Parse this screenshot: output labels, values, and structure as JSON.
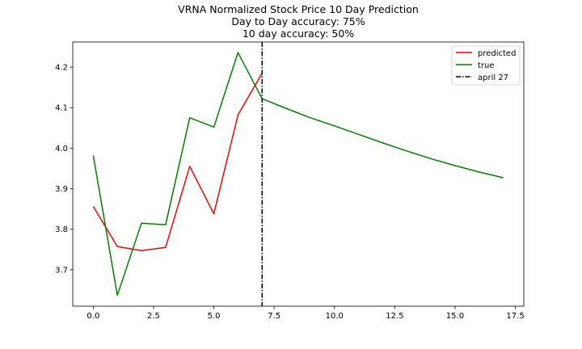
{
  "chart_data": {
    "type": "line",
    "title_lines": [
      "VRNA Normalized Stock Price 10 Day Prediction",
      "Day to Day accuracy: 75%",
      "10 day accuracy: 50%"
    ],
    "xlabel": "",
    "ylabel": "",
    "xlim": [
      -0.85,
      17.85
    ],
    "ylim": [
      3.61,
      4.262
    ],
    "xticks": [
      0.0,
      2.5,
      5.0,
      7.5,
      10.0,
      12.5,
      15.0,
      17.5
    ],
    "xtick_labels": [
      "0.0",
      "2.5",
      "5.0",
      "7.5",
      "10.0",
      "12.5",
      "15.0",
      "17.5"
    ],
    "yticks": [
      3.7,
      3.8,
      3.9,
      4.0,
      4.1,
      4.2
    ],
    "ytick_labels": [
      "3.7",
      "3.8",
      "3.9",
      "4.0",
      "4.1",
      "4.2"
    ],
    "grid": false,
    "legend_position": "top-right",
    "series": [
      {
        "name": "predicted",
        "color": "#ff0000",
        "x": [
          0,
          1,
          2,
          3,
          4,
          5,
          6,
          7
        ],
        "y": [
          3.856,
          3.757,
          3.747,
          3.755,
          3.955,
          3.838,
          4.082,
          4.185
        ]
      },
      {
        "name": "true",
        "color": "#008000",
        "x": [
          0,
          1,
          2,
          3,
          4,
          5,
          6,
          7,
          8,
          9,
          10,
          11,
          12,
          13,
          14,
          15,
          16,
          17
        ],
        "y": [
          3.982,
          3.637,
          3.815,
          3.811,
          4.075,
          4.052,
          4.236,
          4.122,
          4.098,
          4.075,
          4.055,
          4.034,
          4.013,
          3.993,
          3.974,
          3.957,
          3.941,
          3.927
        ]
      }
    ],
    "vline": {
      "name": "april 27",
      "x": 7,
      "color": "#000000",
      "style": "dashdot"
    }
  }
}
